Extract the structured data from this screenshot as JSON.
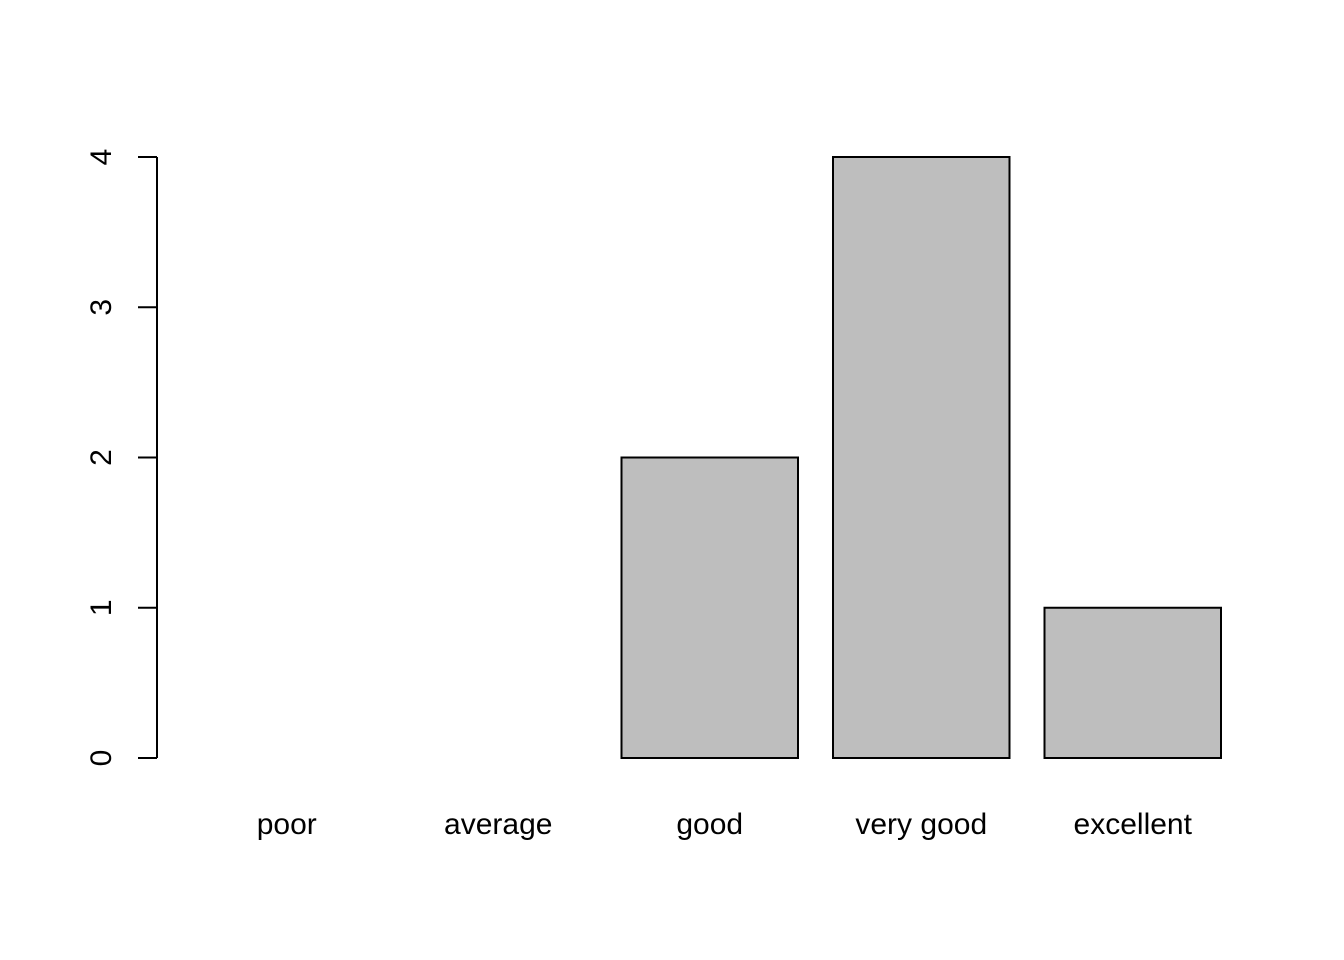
{
  "chart_data": {
    "type": "bar",
    "categories": [
      "poor",
      "average",
      "good",
      "very good",
      "excellent"
    ],
    "values": [
      0,
      0,
      2,
      4,
      1
    ],
    "ylim": [
      0,
      4
    ],
    "yticks": [
      0,
      1,
      2,
      3,
      4
    ],
    "grid": false,
    "bar_fill": "#bebebe",
    "bar_stroke": "#000000"
  }
}
